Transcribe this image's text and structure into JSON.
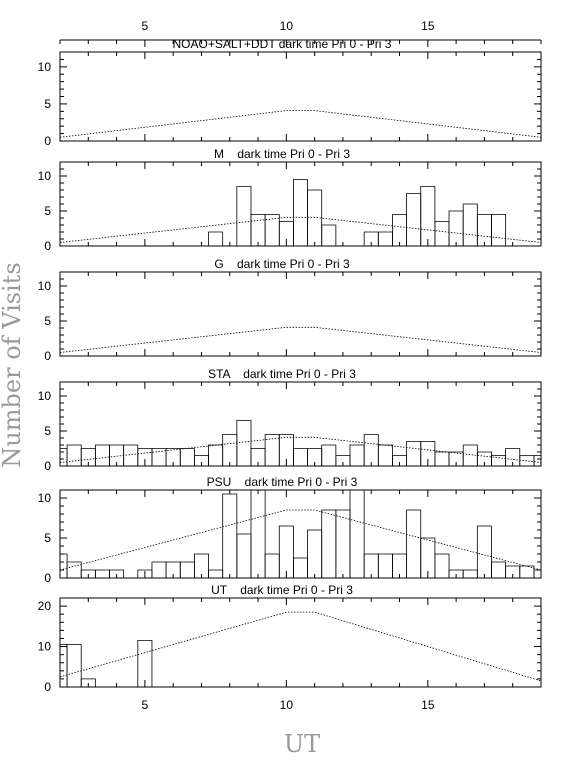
{
  "chart_data": {
    "type": "histogram",
    "x_label": "UT",
    "y_label": "Number of Visits",
    "xlim": [
      2,
      19
    ],
    "x_ticks": [
      5,
      10,
      15
    ],
    "top_axis_ticks": [
      5,
      10,
      15
    ],
    "panels": [
      {
        "title": "NOAO+SALT+DDT dark time Pri 0 - Pri 3",
        "ylim": [
          0,
          12
        ],
        "y_ticks": [
          0,
          5,
          10
        ],
        "bins": [],
        "model": [
          [
            2,
            0.5
          ],
          [
            10,
            4.1
          ],
          [
            11,
            4.1
          ],
          [
            19,
            0.5
          ]
        ]
      },
      {
        "title": "M    dark time Pri 0 - Pri 3",
        "ylim": [
          0,
          12
        ],
        "y_ticks": [
          0,
          5,
          10
        ],
        "bins": [
          [
            7.25,
            7.75,
            2
          ],
          [
            7.75,
            8.25,
            0
          ],
          [
            8.25,
            8.75,
            8.5
          ],
          [
            8.75,
            9.25,
            4.5
          ],
          [
            9.25,
            9.75,
            4.5
          ],
          [
            9.75,
            10.25,
            3.5
          ],
          [
            10.25,
            10.75,
            9.5
          ],
          [
            10.75,
            11.25,
            8
          ],
          [
            11.25,
            11.75,
            3
          ],
          [
            11.75,
            12.25,
            0
          ],
          [
            12.25,
            12.75,
            0
          ],
          [
            12.75,
            13.25,
            2
          ],
          [
            13.25,
            13.75,
            2
          ],
          [
            13.75,
            14.25,
            4.5
          ],
          [
            14.25,
            14.75,
            7.5
          ],
          [
            14.75,
            15.25,
            8.5
          ],
          [
            15.25,
            15.75,
            3.5
          ],
          [
            15.75,
            16.25,
            5
          ],
          [
            16.25,
            16.75,
            6
          ],
          [
            16.75,
            17.25,
            4.5
          ],
          [
            17.25,
            17.75,
            4.5
          ]
        ],
        "model": [
          [
            2,
            0.5
          ],
          [
            10,
            4.1
          ],
          [
            11,
            4.1
          ],
          [
            19,
            0.5
          ]
        ]
      },
      {
        "title": "G    dark time Pri 0 - Pri 3",
        "ylim": [
          0,
          12
        ],
        "y_ticks": [
          0,
          5,
          10
        ],
        "bins": [],
        "model": [
          [
            2,
            0.5
          ],
          [
            10,
            4.1
          ],
          [
            11,
            4.1
          ],
          [
            19,
            0.5
          ]
        ]
      },
      {
        "title": "STA    dark time Pri 0 - Pri 3",
        "ylim": [
          0,
          12
        ],
        "y_ticks": [
          0,
          5,
          10
        ],
        "bins": [
          [
            2,
            2.25,
            2.5
          ],
          [
            2.25,
            2.75,
            3
          ],
          [
            2.75,
            3.25,
            2.5
          ],
          [
            3.25,
            3.75,
            3
          ],
          [
            3.75,
            4.25,
            3
          ],
          [
            4.25,
            4.75,
            3
          ],
          [
            4.75,
            5.25,
            2.5
          ],
          [
            5.25,
            5.75,
            2.5
          ],
          [
            5.75,
            6.25,
            2.5
          ],
          [
            6.25,
            6.75,
            2.5
          ],
          [
            6.75,
            7.25,
            1.5
          ],
          [
            7.25,
            7.75,
            3
          ],
          [
            7.75,
            8.25,
            4.5
          ],
          [
            8.25,
            8.75,
            6.5
          ],
          [
            8.75,
            9.25,
            2.5
          ],
          [
            9.25,
            9.75,
            4.5
          ],
          [
            9.75,
            10.25,
            4.5
          ],
          [
            10.25,
            10.75,
            2.5
          ],
          [
            10.75,
            11.25,
            2.5
          ],
          [
            11.25,
            11.75,
            3
          ],
          [
            11.75,
            12.25,
            1.5
          ],
          [
            12.25,
            12.75,
            3
          ],
          [
            12.75,
            13.25,
            4.5
          ],
          [
            13.25,
            13.75,
            3
          ],
          [
            13.75,
            14.25,
            1.5
          ],
          [
            14.25,
            14.75,
            3.5
          ],
          [
            14.75,
            15.25,
            3.5
          ],
          [
            15.25,
            15.75,
            2
          ],
          [
            15.75,
            16.25,
            2
          ],
          [
            16.25,
            16.75,
            3
          ],
          [
            16.75,
            17.25,
            2
          ],
          [
            17.25,
            17.75,
            1.5
          ],
          [
            17.75,
            18.25,
            2.5
          ],
          [
            18.25,
            18.75,
            1.5
          ],
          [
            18.75,
            19,
            1.5
          ]
        ],
        "model": [
          [
            2,
            0.5
          ],
          [
            10,
            4.1
          ],
          [
            11,
            4.1
          ],
          [
            19,
            0.5
          ]
        ]
      },
      {
        "title": "PSU    dark time Pri 0 - Pri 3",
        "ylim": [
          0,
          11
        ],
        "y_ticks": [
          0,
          5,
          10
        ],
        "bins": [
          [
            2,
            2.25,
            3
          ],
          [
            2.25,
            2.75,
            2
          ],
          [
            2.75,
            3.25,
            1
          ],
          [
            3.25,
            3.75,
            1
          ],
          [
            3.75,
            4.25,
            1
          ],
          [
            4.25,
            4.75,
            0
          ],
          [
            4.75,
            5.25,
            1
          ],
          [
            5.25,
            5.75,
            2
          ],
          [
            5.75,
            6.25,
            2
          ],
          [
            6.25,
            6.75,
            2
          ],
          [
            6.75,
            7.25,
            3
          ],
          [
            7.25,
            7.75,
            1
          ],
          [
            7.75,
            8.25,
            10.5
          ],
          [
            8.25,
            8.75,
            5.5
          ],
          [
            8.75,
            9.25,
            11
          ],
          [
            9.25,
            9.75,
            3
          ],
          [
            9.75,
            10.25,
            6.5
          ],
          [
            10.25,
            10.75,
            2.5
          ],
          [
            10.75,
            11.25,
            6
          ],
          [
            11.25,
            11.75,
            8.5
          ],
          [
            11.75,
            12.25,
            8.5
          ],
          [
            12.25,
            12.75,
            11
          ],
          [
            12.75,
            13.25,
            3
          ],
          [
            13.25,
            13.75,
            3
          ],
          [
            13.75,
            14.25,
            3
          ],
          [
            14.25,
            14.75,
            8.5
          ],
          [
            14.75,
            15.25,
            5
          ],
          [
            15.25,
            15.75,
            3
          ],
          [
            15.75,
            16.25,
            1
          ],
          [
            16.25,
            16.75,
            1
          ],
          [
            16.75,
            17.25,
            6.5
          ],
          [
            17.25,
            17.75,
            2
          ],
          [
            17.75,
            18.25,
            1.5
          ],
          [
            18.25,
            18.75,
            1.5
          ],
          [
            18.75,
            19,
            1
          ]
        ],
        "model": [
          [
            2,
            1
          ],
          [
            10,
            8.5
          ],
          [
            11,
            8.5
          ],
          [
            19,
            1
          ]
        ]
      },
      {
        "title": "UT    dark time Pri 0 - Pri 3",
        "ylim": [
          0,
          22
        ],
        "y_ticks": [
          0,
          10,
          20
        ],
        "bins": [
          [
            2,
            2.25,
            10.5
          ],
          [
            2.25,
            2.75,
            10.5
          ],
          [
            2.75,
            3.25,
            2
          ],
          [
            3.25,
            4.75,
            0
          ],
          [
            4.75,
            5.25,
            11.5
          ]
        ],
        "model": [
          [
            2,
            2.5
          ],
          [
            10,
            18.5
          ],
          [
            11,
            18.5
          ],
          [
            19,
            1.5
          ]
        ]
      }
    ]
  }
}
